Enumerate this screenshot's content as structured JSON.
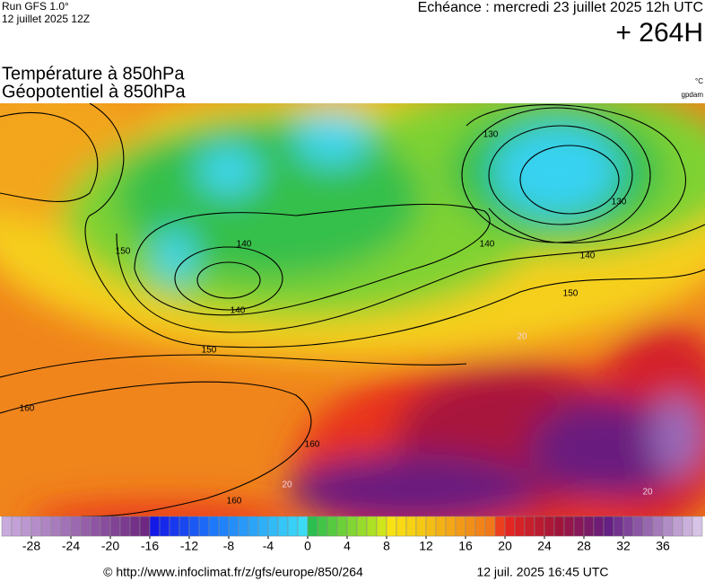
{
  "header": {
    "run": "Run GFS 1.0°",
    "run_time": "12 juillet 2025 12Z",
    "forecast": "Echéance : mercredi 23 juillet 2025 12h UTC",
    "lead": "+ 264H"
  },
  "map": {
    "title_lines": [
      "Température à 850hPa",
      "Géopotentiel à 850hPa"
    ],
    "units": [
      "°C",
      "gpdam"
    ],
    "contour_labels": [
      130,
      130,
      140,
      140,
      140,
      140,
      150,
      150,
      150,
      160,
      160,
      160,
      20,
      20,
      20
    ]
  },
  "colorbar": {
    "range": [
      -31,
      40
    ],
    "ticks": [
      -28,
      -24,
      -20,
      -16,
      -12,
      -8,
      -4,
      0,
      4,
      8,
      12,
      16,
      20,
      24,
      28,
      32,
      36
    ]
  },
  "footer": {
    "url": "© http://www.infoclimat.fr/z/gfs/europe/850/264",
    "timestamp": "12 juil. 2025 16:45 UTC"
  }
}
